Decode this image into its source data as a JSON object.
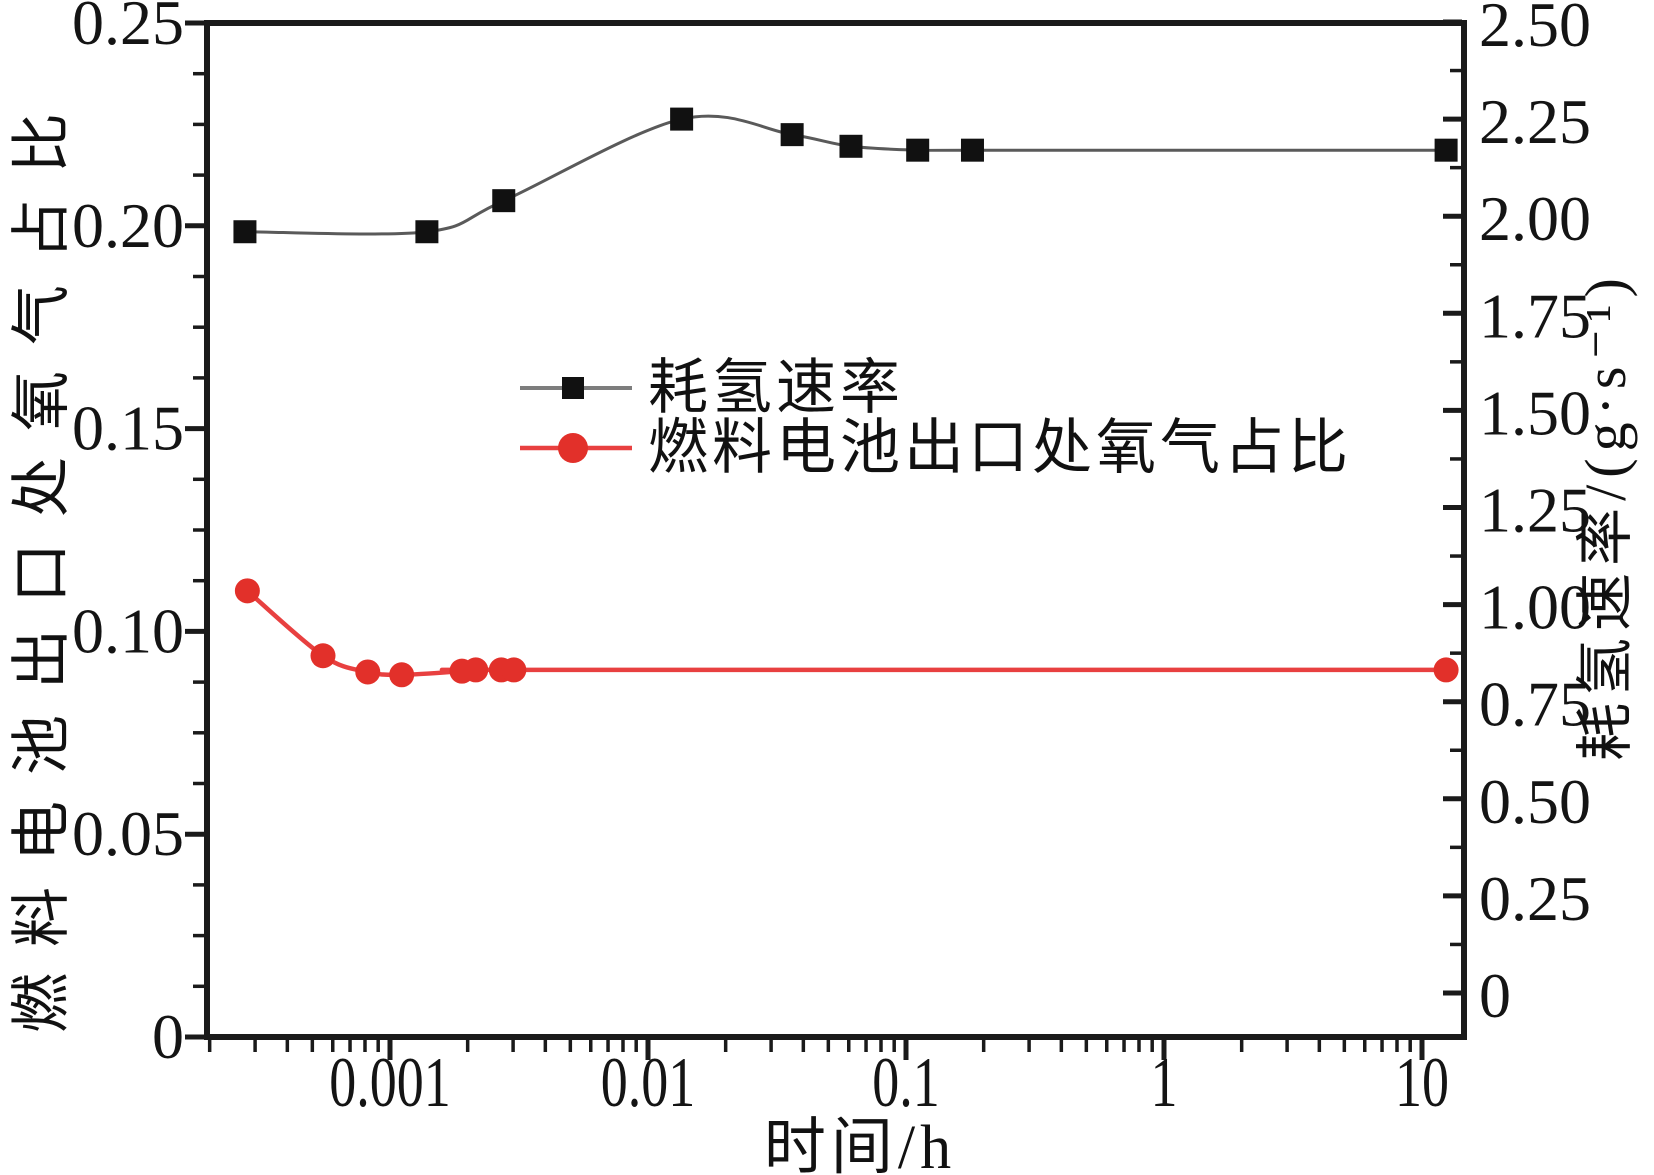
{
  "chart_data": {
    "type": "line",
    "title": "",
    "xlabel": "时间/h",
    "ylabel_left": "燃料电池出口处氧气占比",
    "ylabel_right": "耗氢速率/(g·s⁻¹)",
    "x_scale": "log",
    "x_range": [
      0.0002,
      14.5
    ],
    "y_left_range": [
      0,
      0.25
    ],
    "y_right_range": [
      0,
      2.5
    ],
    "grid": false,
    "background_color": "#ffffff",
    "frame_color": "#1a1a1a",
    "legend_position": "upper-left-of-center",
    "x_ticks": {
      "values": [
        0.001,
        0.01,
        0.1,
        1,
        10
      ],
      "labels": [
        "0.001",
        "0.01",
        "0.1",
        "1",
        "10"
      ]
    },
    "y_left_ticks": {
      "values": [
        0.25,
        0.2,
        0.15,
        0.1,
        0.05,
        0
      ],
      "labels": [
        "0.25",
        "0.20",
        "0.15",
        "0.10",
        "0.05",
        "0"
      ]
    },
    "y_right_ticks": {
      "values": [
        2.5,
        2.25,
        2.0,
        1.75,
        1.5,
        1.25,
        1.0,
        0.75,
        0.5,
        0.25,
        0
      ],
      "labels": [
        "2.50",
        "2.25",
        "2.00",
        "1.75",
        "1.50",
        "1.25",
        "1.00",
        "0.75",
        "0.50",
        "0.25",
        "0"
      ]
    },
    "series": [
      {
        "name": "耗氢速率",
        "axis": "right",
        "marker": "square",
        "marker_color": "#111111",
        "line_color": "#5a5a5a",
        "points": [
          [
            0.000274,
            1.96
          ],
          [
            0.00139,
            1.96
          ],
          [
            0.00276,
            2.04
          ],
          [
            0.0135,
            2.25
          ],
          [
            0.0362,
            2.21
          ],
          [
            0.0612,
            2.18
          ],
          [
            0.111,
            2.17
          ],
          [
            0.181,
            2.17
          ],
          [
            12.4,
            2.17
          ]
        ]
      },
      {
        "name": "燃料电池出口处氧气占比",
        "axis": "left",
        "marker": "circle",
        "marker_color": "#e2302a",
        "line_color": "#e84040",
        "points": [
          [
            0.00028,
            0.11
          ],
          [
            0.00055,
            0.094
          ],
          [
            0.00082,
            0.09
          ],
          [
            0.00111,
            0.0893
          ],
          [
            0.0019,
            0.0902
          ],
          [
            0.00215,
            0.0905
          ],
          [
            0.0027,
            0.0905
          ],
          [
            0.00302,
            0.0905
          ],
          [
            12.4,
            0.0905
          ]
        ]
      }
    ]
  }
}
